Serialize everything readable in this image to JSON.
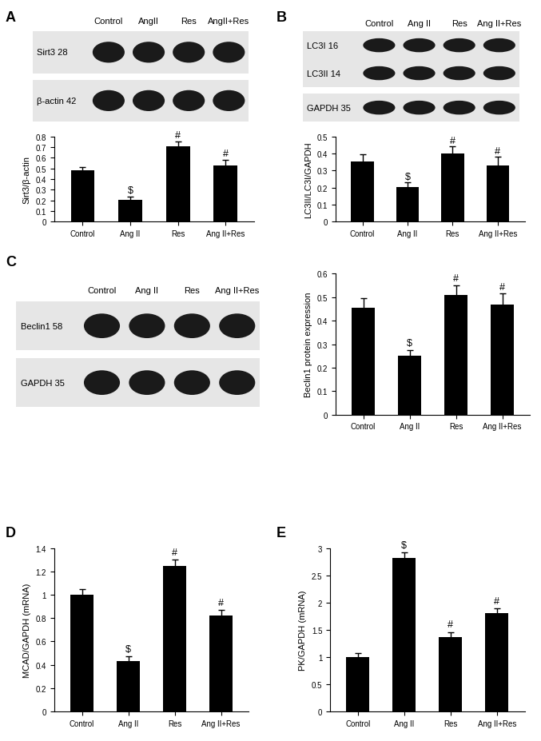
{
  "chart_data": [
    {
      "type": "bar",
      "panel": "A",
      "blots": [
        {
          "lanes": [
            "Control",
            "AngII",
            "Res",
            "AngII+Res"
          ],
          "bands": [
            "Sirt3 28"
          ]
        },
        {
          "bands": [
            "β-actin 42"
          ]
        }
      ],
      "categories": [
        "Control",
        "Ang II",
        "Res",
        "Ang II+Res"
      ],
      "values": [
        0.485,
        0.205,
        0.71,
        0.53
      ],
      "errors": [
        0.03,
        0.03,
        0.045,
        0.05
      ],
      "annotations": [
        null,
        "$",
        "#",
        "#"
      ],
      "y_label": "Sirt3/β-actin",
      "color": "#000000",
      "ylim": [
        0,
        0.8
      ],
      "yticks": [
        0,
        0.1,
        0.2,
        0.3,
        0.4,
        0.5,
        0.6,
        0.7,
        0.8
      ]
    },
    {
      "type": "bar",
      "panel": "B",
      "blots": [
        {
          "lanes": [
            "Control",
            "Ang II",
            "Res",
            "Ang II+Res"
          ],
          "bands": [
            "LC3I 16",
            "LC3II 14"
          ]
        },
        {
          "bands": [
            "GAPDH 35"
          ]
        }
      ],
      "categories": [
        "Control",
        "Ang II",
        "Res",
        "Ang II+Res"
      ],
      "values": [
        0.355,
        0.205,
        0.4,
        0.33
      ],
      "errors": [
        0.04,
        0.025,
        0.04,
        0.05
      ],
      "annotations": [
        null,
        "$",
        "#",
        "#"
      ],
      "y_label": "LC3II/LC3I/GAPDH",
      "color": "#000000",
      "ylim": [
        0,
        0.5
      ],
      "yticks": [
        0,
        0.1,
        0.2,
        0.3,
        0.4,
        0.5
      ]
    },
    {
      "type": "bar",
      "panel": "C",
      "blots": [
        {
          "lanes": [
            "Control",
            "Ang II",
            "Res",
            "Ang II+Res"
          ],
          "bands": [
            "Beclin1 58"
          ]
        },
        {
          "bands": [
            "GAPDH 35"
          ]
        }
      ],
      "categories": [
        "Control",
        "Ang II",
        "Res",
        "Ang II+Res"
      ],
      "values": [
        0.455,
        0.25,
        0.51,
        0.47
      ],
      "errors": [
        0.04,
        0.025,
        0.04,
        0.045
      ],
      "annotations": [
        null,
        "$",
        "#",
        "#"
      ],
      "y_label": "Beclin1 protein expression",
      "color": "#000000",
      "ylim": [
        0,
        0.6
      ],
      "yticks": [
        0,
        0.1,
        0.2,
        0.3,
        0.4,
        0.5,
        0.6
      ]
    },
    {
      "type": "bar",
      "panel": "D",
      "categories": [
        "Control",
        "Ang II",
        "Res",
        "Ang II+Res"
      ],
      "values": [
        1.0,
        0.43,
        1.245,
        0.82
      ],
      "errors": [
        0.05,
        0.04,
        0.06,
        0.05
      ],
      "annotations": [
        null,
        "$",
        "#",
        "#"
      ],
      "y_label": "MCAD/GAPDH (mRNA)",
      "color": "#000000",
      "ylim": [
        0,
        1.4
      ],
      "yticks": [
        0,
        0.2,
        0.4,
        0.6,
        0.8,
        1,
        1.2,
        1.4
      ]
    },
    {
      "type": "bar",
      "panel": "E",
      "categories": [
        "Control",
        "Ang II",
        "Res",
        "Ang II+Res"
      ],
      "values": [
        1.0,
        2.82,
        1.36,
        1.8
      ],
      "errors": [
        0.07,
        0.1,
        0.1,
        0.1
      ],
      "annotations": [
        null,
        "$",
        "#",
        "#"
      ],
      "y_label": "PK/GAPDH (mRNA)",
      "color": "#000000",
      "ylim": [
        0,
        3
      ],
      "yticks": [
        0,
        0.5,
        1,
        1.5,
        2,
        2.5,
        3
      ]
    }
  ]
}
